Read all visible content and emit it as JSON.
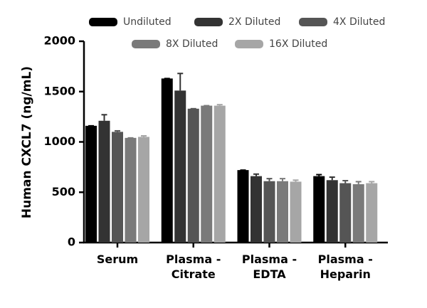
{
  "chart_data": {
    "type": "bar",
    "y_label": "Human CXCL7 (ng/mL)",
    "categories": [
      "Serum",
      "Plasma - Citrate",
      "Plasma - EDTA",
      "Plasma - Heparin"
    ],
    "series": [
      {
        "name": "Undiluted",
        "color": "#000000",
        "values": [
          1160,
          1630,
          720,
          660
        ],
        "errors": [
          0,
          0,
          0,
          15
        ]
      },
      {
        "name": "2X Diluted",
        "color": "#333333",
        "values": [
          1210,
          1510,
          660,
          620
        ],
        "errors": [
          60,
          170,
          20,
          30
        ]
      },
      {
        "name": "4X Diluted",
        "color": "#555555",
        "values": [
          1100,
          1330,
          610,
          590
        ],
        "errors": [
          10,
          0,
          25,
          25
        ]
      },
      {
        "name": "8X Diluted",
        "color": "#7a7a7a",
        "values": [
          1040,
          1360,
          610,
          580
        ],
        "errors": [
          0,
          0,
          25,
          25
        ]
      },
      {
        "name": "16X Diluted",
        "color": "#a6a6a6",
        "values": [
          1050,
          1360,
          605,
          590
        ],
        "errors": [
          10,
          10,
          15,
          15
        ]
      }
    ],
    "ylim": [
      0,
      2000
    ],
    "yticks": [
      0,
      500,
      1000,
      1500,
      2000
    ]
  }
}
